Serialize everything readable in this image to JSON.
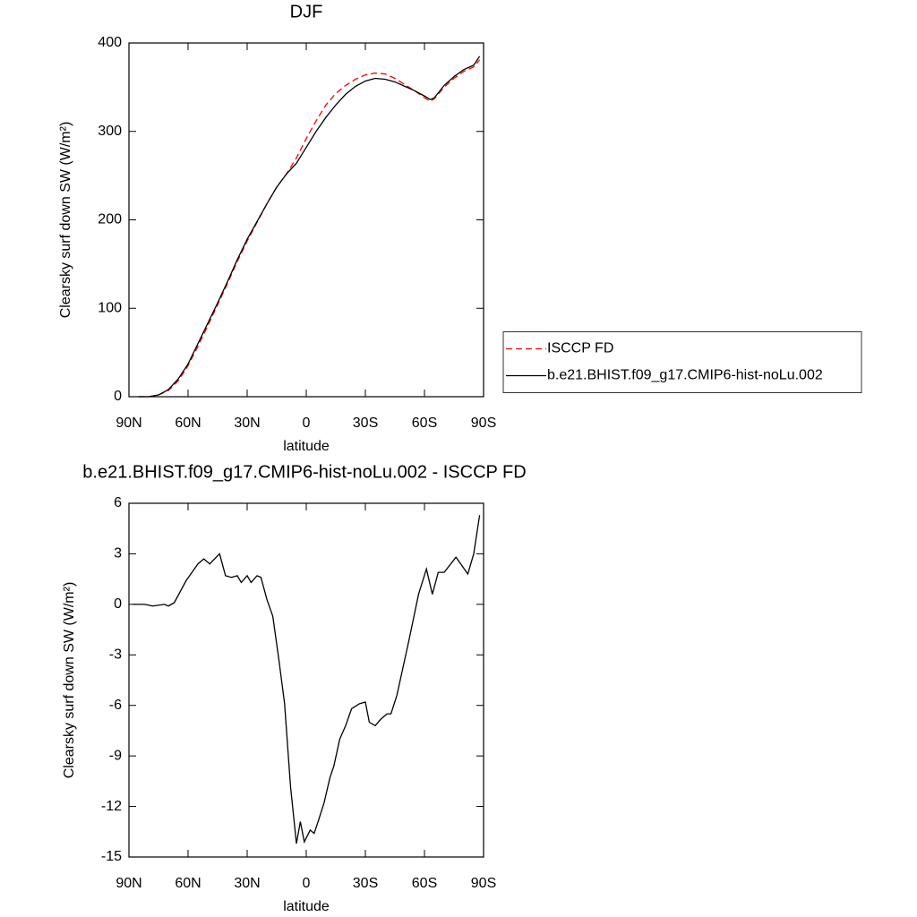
{
  "chart_data": [
    {
      "type": "line",
      "title": "DJF",
      "x_label": "latitude",
      "y_label": "Clearsky surf down SW (W/m²)",
      "x": [
        85,
        80,
        75,
        70,
        65,
        60,
        55,
        50,
        45,
        40,
        35,
        30,
        25,
        20,
        15,
        10,
        5,
        0,
        -5,
        -10,
        -15,
        -20,
        -25,
        -30,
        -35,
        -40,
        -45,
        -50,
        -55,
        -60,
        -63,
        -65,
        -70,
        -75,
        -80,
        -85,
        -88
      ],
      "series": [
        {
          "name": "ISCCP FD",
          "color": "#ff0000",
          "line_style": "dashed",
          "values": [
            0,
            0,
            2,
            7,
            18,
            35,
            57,
            80,
            104,
            128,
            153,
            176,
            197,
            218,
            237,
            252,
            270,
            292,
            312,
            330,
            343,
            352,
            359,
            364,
            366,
            365,
            360,
            353,
            346,
            338,
            334,
            337,
            350,
            360,
            368,
            373,
            381
          ]
        },
        {
          "name": "b.e21.BHIST.f09_g17.CMIP6-hist-noLu.002",
          "color": "#000000",
          "line_style": "solid",
          "values": [
            0,
            0,
            2,
            8,
            20,
            37,
            60,
            83,
            106,
            130,
            155,
            178,
            198,
            218,
            237,
            252,
            264,
            282,
            300,
            316,
            330,
            342,
            351,
            357,
            360,
            359,
            356,
            351,
            346,
            340,
            336,
            338,
            352,
            362,
            370,
            375,
            385
          ]
        }
      ],
      "xlim": [
        90,
        -90
      ],
      "xticks": [
        {
          "value": 90,
          "label": "90N"
        },
        {
          "value": 60,
          "label": "60N"
        },
        {
          "value": 30,
          "label": "30N"
        },
        0,
        {
          "value": -30,
          "label": "30S"
        },
        {
          "value": -60,
          "label": "60S"
        },
        {
          "value": -90,
          "label": "90S"
        }
      ],
      "ylim": [
        0,
        400
      ],
      "yticks": [
        0,
        100,
        200,
        300,
        400
      ],
      "legend": "right"
    },
    {
      "type": "line",
      "title": "b.e21.BHIST.f09_g17.CMIP6-hist-noLu.002 - ISCCP FD",
      "x_label": "latitude",
      "y_label": "Clearsky surf down SW (W/m²)",
      "x": [
        88,
        82,
        78,
        72,
        70,
        67,
        61,
        55,
        52,
        49,
        44,
        41,
        38,
        35,
        33,
        30,
        28,
        25,
        23,
        20,
        17,
        14,
        11,
        8,
        5,
        3,
        1,
        -2,
        -4,
        -6,
        -9,
        -12,
        -14,
        -17,
        -20,
        -23,
        -27,
        -30,
        -32,
        -35,
        -38,
        -41,
        -43,
        -46,
        -52,
        -57,
        -61,
        -64,
        -67,
        -70,
        -76,
        -82,
        -85,
        -88
      ],
      "values": [
        0,
        0,
        -0.1,
        0,
        -0.1,
        0.1,
        1.4,
        2.4,
        2.7,
        2.4,
        3.0,
        1.7,
        1.6,
        1.7,
        1.3,
        1.7,
        1.3,
        1.7,
        1.6,
        0.3,
        -0.7,
        -3.2,
        -5.9,
        -10.8,
        -14.2,
        -12.9,
        -14.1,
        -13.4,
        -13.6,
        -12.9,
        -11.8,
        -10.3,
        -9.6,
        -8.0,
        -7.2,
        -6.2,
        -5.9,
        -5.8,
        -7.0,
        -7.2,
        -6.8,
        -6.5,
        -6.5,
        -5.4,
        -2.2,
        0.6,
        2.1,
        0.6,
        1.9,
        1.9,
        2.8,
        1.8,
        3.0,
        5.3
      ],
      "color": "#000000",
      "xlim": [
        90,
        -90
      ],
      "xticks": [
        {
          "value": 90,
          "label": "90N"
        },
        {
          "value": 60,
          "label": "60N"
        },
        {
          "value": 30,
          "label": "30N"
        },
        0,
        {
          "value": -30,
          "label": "30S"
        },
        {
          "value": -60,
          "label": "60S"
        },
        {
          "value": -90,
          "label": "90S"
        }
      ],
      "ylim": [
        -15,
        6
      ],
      "yticks": [
        -15,
        -12,
        -9,
        -6,
        -3,
        0,
        3,
        6
      ]
    }
  ]
}
